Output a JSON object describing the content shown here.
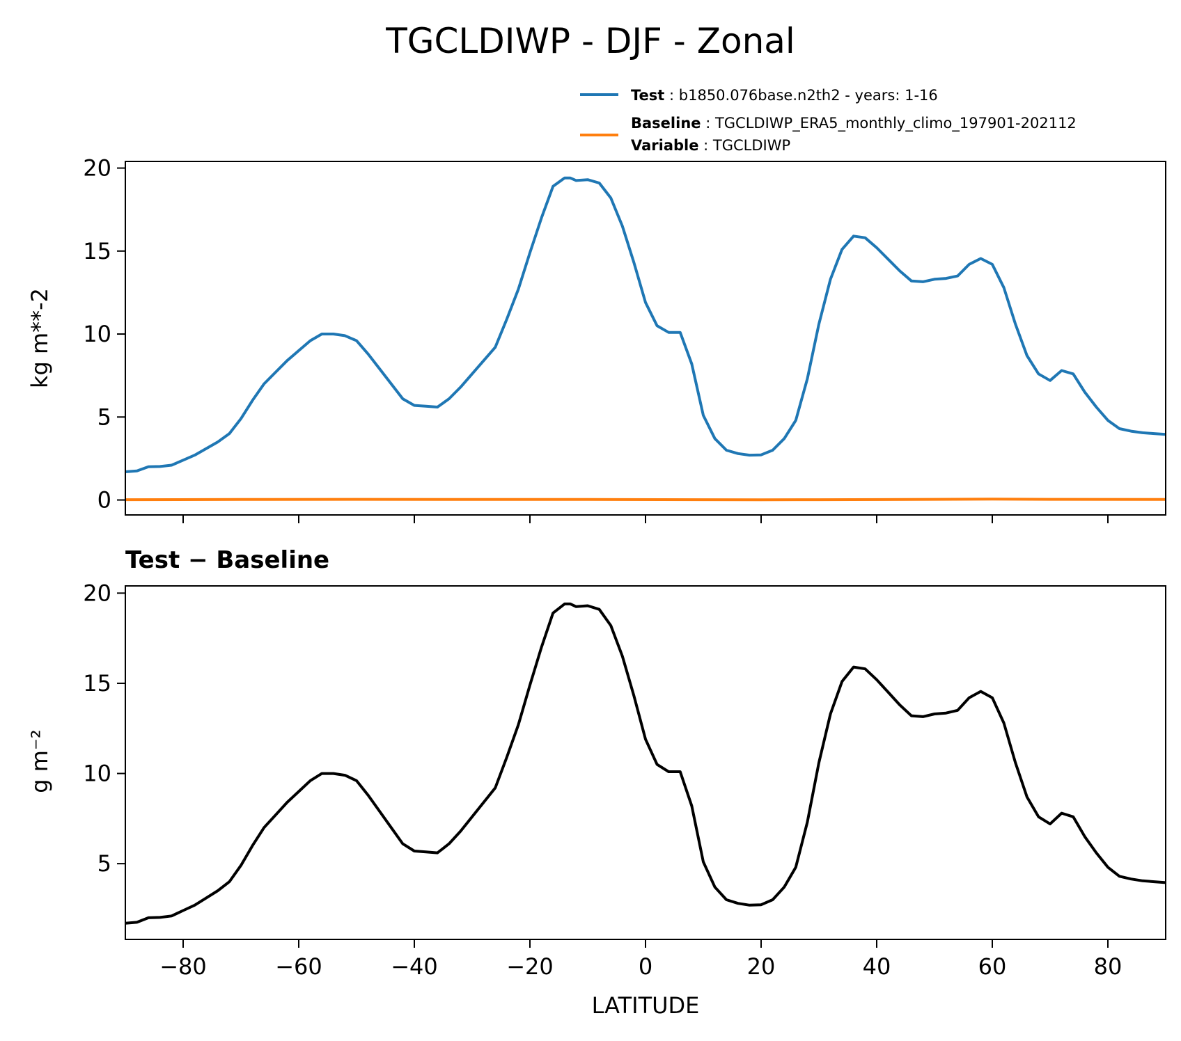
{
  "figure": {
    "title": "TGCLDIWP - DJF - Zonal",
    "xlabel": "LATITUDE"
  },
  "legend": {
    "test_key": "Test",
    "test_value": ": b1850.076base.n2th2 - years: 1-16",
    "baseline_key": "Baseline",
    "baseline_value": ": TGCLDIWP_ERA5_monthly_climo_197901-202112",
    "variable_key": "Variable",
    "variable_value": ": TGCLDIWP"
  },
  "colors": {
    "test": "#1f77b4",
    "baseline": "#ff7f0e",
    "diff": "#000000"
  },
  "chart_data": [
    {
      "type": "line",
      "ylabel": "kg m**-2",
      "xlim": [
        -90,
        90
      ],
      "ylim": [
        -0.9,
        20.4
      ],
      "yticks": [
        0,
        5,
        10,
        15,
        20
      ],
      "series": [
        {
          "name": "Test",
          "x": [
            -90,
            -88,
            -86,
            -84,
            -82,
            -80,
            -78,
            -76,
            -74,
            -72,
            -70,
            -68,
            -66,
            -64,
            -62,
            -60,
            -58,
            -56,
            -54,
            -52,
            -50,
            -48,
            -46,
            -44,
            -42,
            -40,
            -38,
            -36,
            -34,
            -32,
            -30,
            -28,
            -26,
            -24,
            -22,
            -20,
            -18,
            -16,
            -14,
            -13,
            -12,
            -10,
            -8,
            -6,
            -4,
            -2,
            0,
            2,
            4,
            6,
            8,
            10,
            12,
            14,
            16,
            18,
            20,
            22,
            24,
            26,
            28,
            30,
            32,
            34,
            36,
            38,
            40,
            42,
            44,
            46,
            48,
            50,
            52,
            54,
            56,
            58,
            60,
            62,
            64,
            66,
            68,
            70,
            72,
            74,
            76,
            78,
            80,
            82,
            84,
            86,
            88,
            90
          ],
          "values": [
            1.7,
            1.75,
            2.0,
            2.02,
            2.1,
            2.4,
            2.7,
            3.1,
            3.5,
            4.0,
            4.9,
            6.0,
            7.0,
            7.7,
            8.4,
            9.0,
            9.6,
            10.0,
            10.0,
            9.9,
            9.6,
            8.8,
            7.9,
            7.0,
            6.1,
            5.7,
            5.65,
            5.6,
            6.1,
            6.8,
            7.6,
            8.4,
            9.2,
            10.9,
            12.7,
            14.9,
            17.0,
            18.9,
            19.4,
            19.4,
            19.25,
            19.3,
            19.1,
            18.2,
            16.5,
            14.3,
            11.9,
            10.5,
            10.1,
            10.1,
            8.2,
            5.1,
            3.7,
            3.0,
            2.8,
            2.7,
            2.72,
            3.0,
            3.7,
            4.8,
            7.3,
            10.6,
            13.3,
            15.1,
            15.9,
            15.8,
            15.2,
            14.5,
            13.8,
            13.2,
            13.15,
            13.3,
            13.35,
            13.5,
            14.2,
            14.55,
            14.2,
            12.8,
            10.6,
            8.7,
            7.6,
            7.2,
            7.8,
            7.6,
            6.5,
            5.6,
            4.8,
            4.3,
            4.15,
            4.05,
            4.0,
            3.95
          ]
        },
        {
          "name": "Baseline",
          "x": [
            -90,
            -70,
            -50,
            -30,
            -10,
            10,
            20,
            30,
            50,
            60,
            70,
            90
          ],
          "values": [
            0.02,
            0.03,
            0.04,
            0.03,
            0.03,
            0.02,
            0.01,
            0.02,
            0.04,
            0.05,
            0.04,
            0.03
          ]
        }
      ]
    },
    {
      "type": "line",
      "title": "Test − Baseline",
      "ylabel": "g m⁻²",
      "xlim": [
        -90,
        90
      ],
      "ylim": [
        0.8,
        20.4
      ],
      "yticks": [
        5,
        10,
        15,
        20
      ],
      "xticks": [
        -80,
        -60,
        -40,
        -20,
        0,
        20,
        40,
        60,
        80
      ],
      "xticklabels": [
        "−80",
        "−60",
        "−40",
        "−20",
        "0",
        "20",
        "40",
        "60",
        "80"
      ],
      "series": [
        {
          "x": [
            -90,
            -88,
            -86,
            -84,
            -82,
            -80,
            -78,
            -76,
            -74,
            -72,
            -70,
            -68,
            -66,
            -64,
            -62,
            -60,
            -58,
            -56,
            -54,
            -52,
            -50,
            -48,
            -46,
            -44,
            -42,
            -40,
            -38,
            -36,
            -34,
            -32,
            -30,
            -28,
            -26,
            -24,
            -22,
            -20,
            -18,
            -16,
            -14,
            -13,
            -12,
            -10,
            -8,
            -6,
            -4,
            -2,
            0,
            2,
            4,
            6,
            8,
            10,
            12,
            14,
            16,
            18,
            20,
            22,
            24,
            26,
            28,
            30,
            32,
            34,
            36,
            38,
            40,
            42,
            44,
            46,
            48,
            50,
            52,
            54,
            56,
            58,
            60,
            62,
            64,
            66,
            68,
            70,
            72,
            74,
            76,
            78,
            80,
            82,
            84,
            86,
            88,
            90
          ],
          "values": [
            1.7,
            1.75,
            2.0,
            2.02,
            2.1,
            2.4,
            2.7,
            3.1,
            3.5,
            4.0,
            4.9,
            6.0,
            7.0,
            7.7,
            8.4,
            9.0,
            9.6,
            10.0,
            10.0,
            9.9,
            9.6,
            8.8,
            7.9,
            7.0,
            6.1,
            5.7,
            5.65,
            5.6,
            6.1,
            6.8,
            7.6,
            8.4,
            9.2,
            10.9,
            12.7,
            14.9,
            17.0,
            18.9,
            19.4,
            19.4,
            19.25,
            19.3,
            19.1,
            18.2,
            16.5,
            14.3,
            11.9,
            10.5,
            10.1,
            10.1,
            8.2,
            5.1,
            3.7,
            3.0,
            2.8,
            2.7,
            2.72,
            3.0,
            3.7,
            4.8,
            7.3,
            10.6,
            13.3,
            15.1,
            15.9,
            15.8,
            15.2,
            14.5,
            13.8,
            13.2,
            13.15,
            13.3,
            13.35,
            13.5,
            14.2,
            14.55,
            14.2,
            12.8,
            10.6,
            8.7,
            7.6,
            7.2,
            7.8,
            7.6,
            6.5,
            5.6,
            4.8,
            4.3,
            4.15,
            4.05,
            4.0,
            3.95
          ]
        }
      ]
    }
  ]
}
